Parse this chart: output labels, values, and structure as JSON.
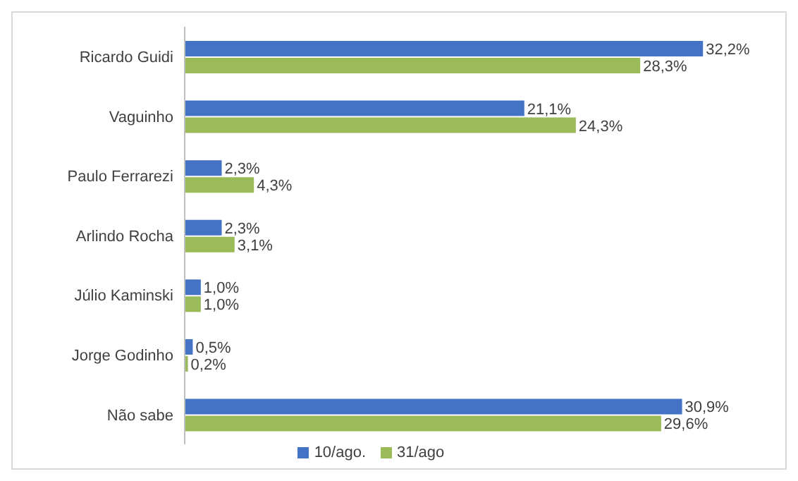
{
  "chart_data": {
    "type": "bar",
    "orientation": "horizontal",
    "categories": [
      "Ricardo Guidi",
      "Vaguinho",
      "Paulo Ferrarezi",
      "Arlindo Rocha",
      "Júlio Kaminski",
      "Jorge Godinho",
      "Não sabe"
    ],
    "series": [
      {
        "name": "10/ago.",
        "color": "#4472c4",
        "values": [
          32.2,
          21.1,
          2.3,
          2.3,
          1.0,
          0.5,
          30.9
        ],
        "value_labels": [
          "32,2%",
          "21,1%",
          "2,3%",
          "2,3%",
          "1,0%",
          "0,5%",
          "30,9%"
        ]
      },
      {
        "name": "31/ago",
        "color": "#9bbb59",
        "values": [
          28.3,
          24.3,
          4.3,
          3.1,
          1.0,
          0.2,
          29.6
        ],
        "value_labels": [
          "28,3%",
          "24,3%",
          "4,3%",
          "3,1%",
          "1,0%",
          "0,2%",
          "29,6%"
        ]
      }
    ],
    "legend": "bottom"
  }
}
